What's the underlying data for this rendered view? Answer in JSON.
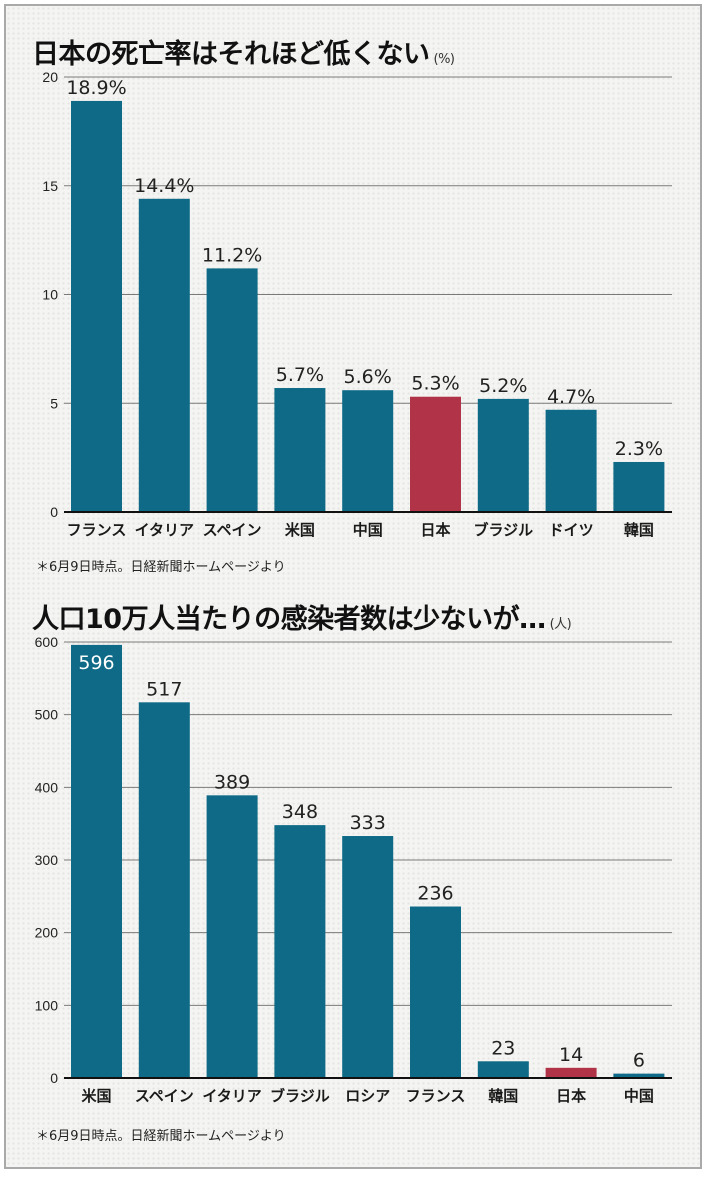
{
  "colors": {
    "bar": "#0e6a86",
    "highlight": "#b03348",
    "grid": "#7a7a7a",
    "axis": "#111111"
  },
  "chart_data": [
    {
      "type": "bar",
      "title": "日本の死亡率はそれほど低くない",
      "unit": "(%)",
      "categories": [
        "フランス",
        "イタリア",
        "スペイン",
        "米国",
        "中国",
        "日本",
        "ブラジル",
        "ドイツ",
        "韓国"
      ],
      "values": [
        18.9,
        14.4,
        11.2,
        5.7,
        5.6,
        5.3,
        5.2,
        4.7,
        2.3
      ],
      "data_labels": [
        "18.9%",
        "14.4%",
        "11.2%",
        "5.7%",
        "5.6%",
        "5.3%",
        "5.2%",
        "4.7%",
        "2.3%"
      ],
      "highlight": "日本",
      "ylim": [
        0,
        20
      ],
      "yticks": [
        0,
        5,
        10,
        15,
        20
      ],
      "grid": true,
      "xlabel": "",
      "ylabel": "",
      "note": "＊6月9日時点。日経新聞ホームページより"
    },
    {
      "type": "bar",
      "title": "人口10万人当たりの感染者数は少ないが…",
      "unit": "(人)",
      "categories": [
        "米国",
        "スペイン",
        "イタリア",
        "ブラジル",
        "ロシア",
        "フランス",
        "韓国",
        "日本",
        "中国"
      ],
      "values": [
        596,
        517,
        389,
        348,
        333,
        236,
        23,
        14,
        6
      ],
      "data_labels": [
        "596",
        "517",
        "389",
        "348",
        "333",
        "236",
        "23",
        "14",
        "6"
      ],
      "highlight": "日本",
      "ylim": [
        0,
        600
      ],
      "yticks": [
        0,
        100,
        200,
        300,
        400,
        500,
        600
      ],
      "grid": true,
      "xlabel": "",
      "ylabel": "",
      "note": "＊6月9日時点。日経新聞ホームページより"
    }
  ]
}
